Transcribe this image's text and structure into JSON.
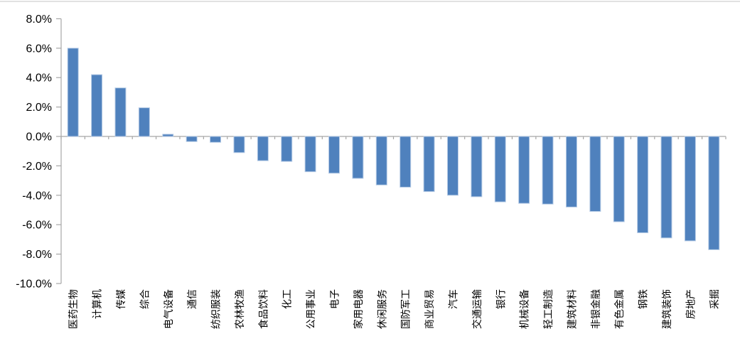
{
  "chart_data": {
    "type": "bar",
    "title": "",
    "xlabel": "",
    "ylabel": "",
    "categories": [
      "医药生物",
      "计算机",
      "传媒",
      "综合",
      "电气设备",
      "通信",
      "纺织服装",
      "农林牧渔",
      "食品饮料",
      "化工",
      "公用事业",
      "电子",
      "家用电器",
      "休闲服务",
      "国防军工",
      "商业贸易",
      "汽车",
      "交通运输",
      "银行",
      "机械设备",
      "轻工制造",
      "建筑材料",
      "非银金融",
      "有色金属",
      "钢铁",
      "建筑装饰",
      "房地产",
      "采掘"
    ],
    "values": [
      6.0,
      4.2,
      3.3,
      1.95,
      0.15,
      -0.35,
      -0.4,
      -1.1,
      -1.65,
      -1.7,
      -2.4,
      -2.5,
      -2.85,
      -3.3,
      -3.45,
      -3.75,
      -4.0,
      -4.1,
      -4.45,
      -4.55,
      -4.6,
      -4.8,
      -5.1,
      -5.8,
      -6.55,
      -6.9,
      -7.1,
      -7.7
    ],
    "ylim": [
      -10,
      8
    ],
    "ytick_step": 2,
    "ytick_labels": [
      "8.0%",
      "6.0%",
      "4.0%",
      "2.0%",
      "0.0%",
      "-2.0%",
      "-4.0%",
      "-6.0%",
      "-8.0%",
      "-10.0%"
    ],
    "grid": false,
    "legend_position": "none",
    "colors": {
      "bar": "#4F81BD",
      "bar_edge": "#B7CCE6",
      "axis": "#A6A6A6",
      "text": "#000000",
      "top_border": "#D9D9D9"
    }
  }
}
